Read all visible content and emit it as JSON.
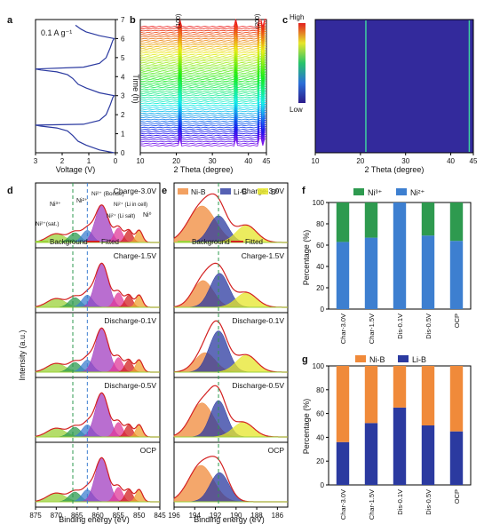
{
  "panels": {
    "a": {
      "letter": "a",
      "rate": "0.1 A g⁻¹",
      "xlabel": "Voltage (V)",
      "ylabel": "Time (h)",
      "xticks": [
        "3",
        "2",
        "1",
        "0"
      ],
      "yticks": [
        "0",
        "1",
        "2",
        "3",
        "4",
        "5",
        "6",
        "7"
      ]
    },
    "b": {
      "letter": "b",
      "peak1": "(100)",
      "peak2": "(200)",
      "xlabel": "2 Theta (degree)",
      "xticks": [
        "10",
        "20",
        "30",
        "40",
        "45"
      ]
    },
    "c": {
      "letter": "c",
      "xlabel": "2 Theta (degree)",
      "xticks": [
        "10",
        "20",
        "30",
        "40",
        "45"
      ],
      "cbar_high": "High",
      "cbar_low": "Low"
    },
    "d": {
      "letter": "d",
      "xlabel": "Binding energy (eV)",
      "ylabel": "Intensity (a.u.)",
      "xticks": [
        "875",
        "870",
        "865",
        "860",
        "855",
        "850",
        "845"
      ],
      "spectra": [
        "Charge-3.0V",
        "Charge-1.5V",
        "Discharge-0.1V",
        "Discharge-0.5V",
        "OCP"
      ],
      "annotations": {
        "ni_sat": "Ni²⁺(sat.)",
        "ni3": "Ni³⁺",
        "ni2": "Ni²⁺",
        "boride": "Ni²⁺ (Boride)",
        "licell": "Ni²⁺ (Li in cell)",
        "lisalt": "Ni²⁺ (Li salt)",
        "ni0": "Ni⁰"
      },
      "legend": {
        "background": "Background",
        "fitted": "Fitted"
      }
    },
    "e": {
      "letter": "e",
      "xlabel": "Binding energy (eV)",
      "xticks": [
        "196",
        "194",
        "192",
        "190",
        "188",
        "186"
      ],
      "spectra": [
        "Charge-3.0V",
        "Charge-1.5V",
        "Discharge-0.1V",
        "Discharge-0.5V",
        "OCP"
      ],
      "legend": {
        "nib": "Ni-B",
        "lib": "Li-B",
        "b0": "B⁰",
        "background": "Background",
        "fitted": "Fitted"
      }
    },
    "f": {
      "letter": "f",
      "ylabel": "Percentage (%)",
      "legend": {
        "ni3": "Ni³⁺",
        "ni2": "Ni²⁺"
      }
    },
    "g": {
      "letter": "g",
      "ylabel": "Percentage (%)",
      "legend": {
        "nib": "Ni-B",
        "lib": "Li-B"
      }
    }
  },
  "colors": {
    "ni3": "#2e9a4f",
    "ni2": "#3d7fd0",
    "nib": "#f08a3a",
    "lib": "#2b3aa0"
  },
  "chart_data": [
    {
      "panel": "a",
      "type": "line",
      "xlabel": "Voltage (V)",
      "ylabel": "Time (h)",
      "xlim": [
        3,
        0
      ],
      "ylim": [
        0,
        7
      ],
      "series": [
        {
          "points": [
            [
              0.05,
              0
            ],
            [
              0.6,
              0.15
            ],
            [
              1.1,
              0.4
            ],
            [
              1.4,
              0.6
            ],
            [
              1.6,
              0.9
            ],
            [
              1.8,
              1.15
            ],
            [
              2.2,
              1.3
            ],
            [
              2.8,
              1.4
            ],
            [
              3.0,
              1.45
            ],
            [
              1.2,
              1.5
            ],
            [
              0.6,
              1.7
            ],
            [
              0.35,
              2.0
            ],
            [
              0.2,
              2.5
            ],
            [
              0.1,
              2.9
            ],
            [
              0.05,
              3.0
            ],
            [
              0.6,
              3.15
            ],
            [
              1.1,
              3.4
            ],
            [
              1.4,
              3.6
            ],
            [
              1.6,
              3.9
            ],
            [
              1.8,
              4.1
            ],
            [
              2.2,
              4.25
            ],
            [
              2.8,
              4.35
            ],
            [
              3.0,
              4.4
            ],
            [
              1.2,
              4.5
            ],
            [
              0.6,
              4.7
            ],
            [
              0.35,
              5.0
            ],
            [
              0.2,
              5.5
            ],
            [
              0.1,
              5.9
            ],
            [
              0.05,
              6.0
            ],
            [
              0.6,
              6.15
            ],
            [
              1.1,
              6.35
            ],
            [
              1.3,
              6.5
            ],
            [
              1.5,
              6.7
            ]
          ]
        }
      ]
    },
    {
      "panel": "b",
      "type": "line",
      "xlabel": "2 Theta (degree)",
      "xlim": [
        10,
        45
      ],
      "n_patterns": 60,
      "peaks": [
        {
          "label": "(100)",
          "x": 21.2
        },
        {
          "label": "",
          "x": 36.5
        },
        {
          "label": "(200)",
          "x": 43.3
        },
        {
          "label": "",
          "x": 44.7
        }
      ]
    },
    {
      "panel": "c",
      "type": "heatmap",
      "xlabel": "2 Theta (degree)",
      "xlim": [
        10,
        45
      ],
      "lines": [
        21.2,
        44.1
      ]
    },
    {
      "panel": "d",
      "type": "line",
      "xlabel": "Binding energy (eV)",
      "ylabel": "Intensity (a.u.)",
      "xlim": [
        875,
        845
      ],
      "dashed_lines": [
        866.0,
        862.5
      ],
      "spectra": [
        "Charge-3.0V",
        "Charge-1.5V",
        "Discharge-0.1V",
        "Discharge-0.5V",
        "OCP"
      ]
    },
    {
      "panel": "e",
      "type": "line",
      "xlabel": "Binding energy (eV)",
      "xlim": [
        196,
        185
      ],
      "dashed_lines": [
        191.7
      ],
      "spectra": [
        "Charge-3.0V",
        "Charge-1.5V",
        "Discharge-0.1V",
        "Discharge-0.5V",
        "OCP"
      ]
    },
    {
      "panel": "f",
      "type": "bar",
      "stacked": true,
      "ylabel": "Percentage (%)",
      "ylim": [
        0,
        100
      ],
      "categories": [
        "Char-3.0V",
        "Char-1.5V",
        "Dis-0.1V",
        "Dis-0.5V",
        "OCP"
      ],
      "series": [
        {
          "name": "Ni²⁺",
          "values": [
            63,
            67,
            100,
            69,
            64
          ]
        },
        {
          "name": "Ni³⁺",
          "values": [
            37,
            33,
            0,
            31,
            36
          ]
        }
      ],
      "yticks": [
        "0",
        "20",
        "40",
        "60",
        "80",
        "100"
      ]
    },
    {
      "panel": "g",
      "type": "bar",
      "stacked": true,
      "ylabel": "Percentage (%)",
      "ylim": [
        0,
        100
      ],
      "categories": [
        "Char-3.0V",
        "Char-1.5V",
        "Dis-0.1V",
        "Dis-0.5V",
        "OCP"
      ],
      "series": [
        {
          "name": "Li-B",
          "values": [
            36,
            52,
            65,
            50,
            45
          ]
        },
        {
          "name": "Ni-B",
          "values": [
            64,
            48,
            35,
            50,
            55
          ]
        }
      ],
      "yticks": [
        "0",
        "20",
        "40",
        "60",
        "80",
        "100"
      ]
    }
  ]
}
